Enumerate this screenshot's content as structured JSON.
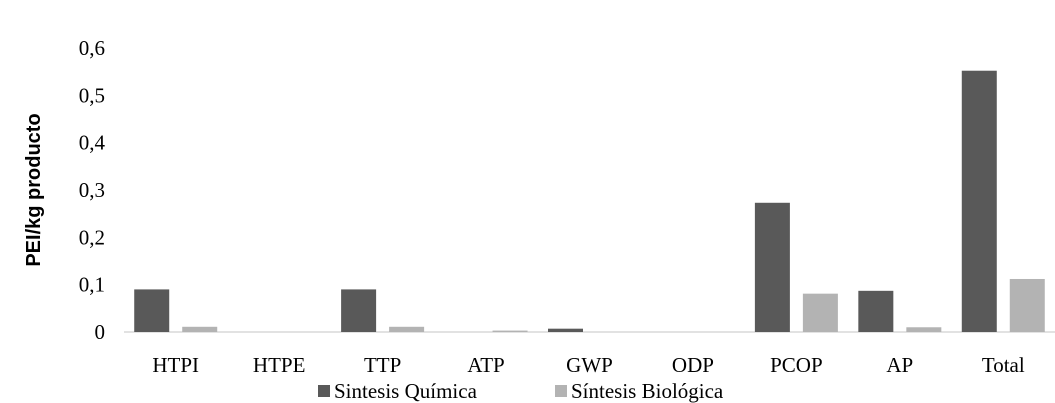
{
  "chart_data": {
    "type": "bar",
    "categories": [
      "HTPI",
      "HTPE",
      "TTP",
      "ATP",
      "GWP",
      "ODP",
      "PCOP",
      "AP",
      "Total"
    ],
    "series": [
      {
        "name": "Sintesis Química",
        "color": "#595959",
        "values": [
          0.09,
          0.0,
          0.09,
          0.0,
          0.007,
          0.0,
          0.273,
          0.087,
          0.552
        ]
      },
      {
        "name": "Síntesis Biológica",
        "color": "#b3b3b3",
        "values": [
          0.011,
          0.0,
          0.011,
          0.003,
          0.0,
          0.0,
          0.081,
          0.01,
          0.112
        ]
      }
    ],
    "ylabel": "PEI/kg producto",
    "ylim": [
      0,
      0.6
    ],
    "yticks": [
      "0",
      "0,1",
      "0,2",
      "0,3",
      "0,4",
      "0,5",
      "0,6"
    ],
    "grid": false,
    "legend": "bottom"
  }
}
